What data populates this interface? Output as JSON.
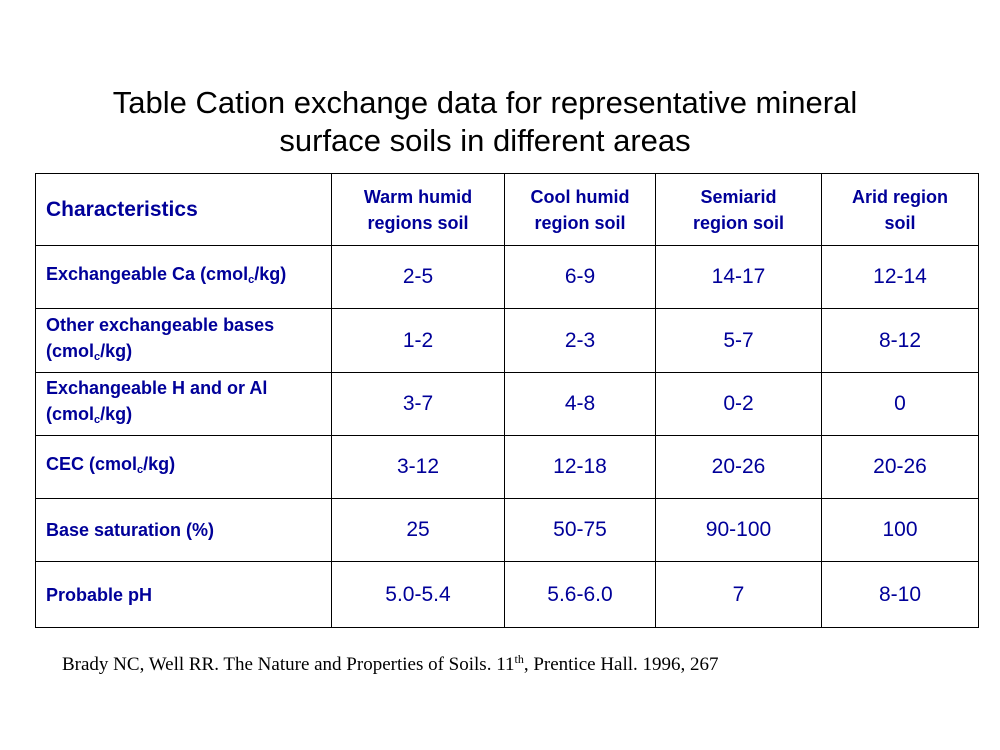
{
  "header": {
    "title_lines": [
      "Table Cation exchange data for representative mineral",
      "surface soils in different areas"
    ]
  },
  "table": {
    "header": [
      "Characteristics",
      [
        "Warm humid",
        "regions soil"
      ],
      [
        "Cool humid",
        "region soil"
      ],
      [
        "Semiarid",
        "region soil"
      ],
      [
        "Arid region",
        "soil"
      ]
    ],
    "rows": [
      {
        "label": [
          "Exchangeable Ca (cmol",
          "c",
          "/kg)"
        ],
        "cells": [
          "2-5",
          "6-9",
          "14-17",
          "12-14"
        ]
      },
      {
        "label": [
          "Other exchangeable bases (cmol",
          "c",
          "/kg)"
        ],
        "cells": [
          "1-2",
          "2-3",
          "5-7",
          "8-12"
        ]
      },
      {
        "label": [
          "Exchangeable H and or Al (cmol",
          "c",
          "/kg)"
        ],
        "cells": [
          "3-7",
          "4-8",
          "0-2",
          "0"
        ]
      },
      {
        "label": [
          "CEC (cmol",
          "c",
          "/kg)"
        ],
        "cells": [
          "3-12",
          "12-18",
          "20-26",
          "20-26"
        ]
      },
      {
        "label": [
          "Base saturation (%)"
        ],
        "cells": [
          "25",
          "50-75",
          "90-100",
          "100"
        ]
      },
      {
        "label": [
          "Probable pH"
        ],
        "cells": [
          "5.0-5.4",
          "5.6-6.0",
          "7",
          "8-10"
        ]
      }
    ]
  },
  "reference": [
    "Brady NC, Well RR. The Nature and Properties of Soils. 11",
    "th",
    ", Prentice Hall. 1996, 267"
  ]
}
